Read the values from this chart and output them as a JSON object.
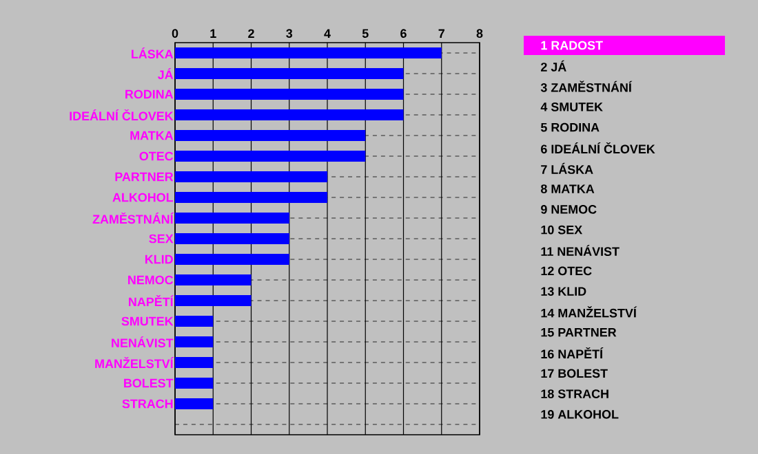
{
  "chart_data": {
    "type": "bar",
    "orientation": "horizontal",
    "categories": [
      "LÁSKA",
      "JÁ",
      "RODINA",
      "IDEÁLNÍ ČLOVEK",
      "MATKA",
      "OTEC",
      "PARTNER",
      "ALKOHOL",
      "ZAMĚSTNÁNÍ",
      "SEX",
      "KLID",
      "NEMOC",
      "NAPĚTÍ",
      "SMUTEK",
      "NENÁVIST",
      "MANŽELSTVÍ",
      "BOLEST",
      "STRACH",
      null
    ],
    "values": [
      7,
      6,
      6,
      6,
      5,
      5,
      4,
      4,
      3,
      3,
      3,
      2,
      2,
      1,
      1,
      1,
      1,
      1,
      0
    ],
    "color": "#0000ff",
    "xlim": [
      0,
      8
    ],
    "xticks": [
      0,
      1,
      2,
      3,
      4,
      5,
      6,
      7,
      8
    ],
    "grid": true,
    "annotations": [
      "1 RADOST",
      "2 JÁ",
      "3 ZAMĚSTNÁNÍ",
      "4 SMUTEK",
      "5 RODINA",
      "6 IDEÁLNÍ ČLOVEK",
      "7 LÁSKA",
      "8 MATKA",
      "9 NEMOC",
      "10 SEX",
      "11 NENÁVIST",
      "12 OTEC",
      "13 KLID",
      "14 MANŽELSTVÍ",
      "15 PARTNER",
      "16 NAPĚTÍ",
      "17 BOLEST",
      "18 STRACH",
      "19 ALKOHOL"
    ]
  }
}
